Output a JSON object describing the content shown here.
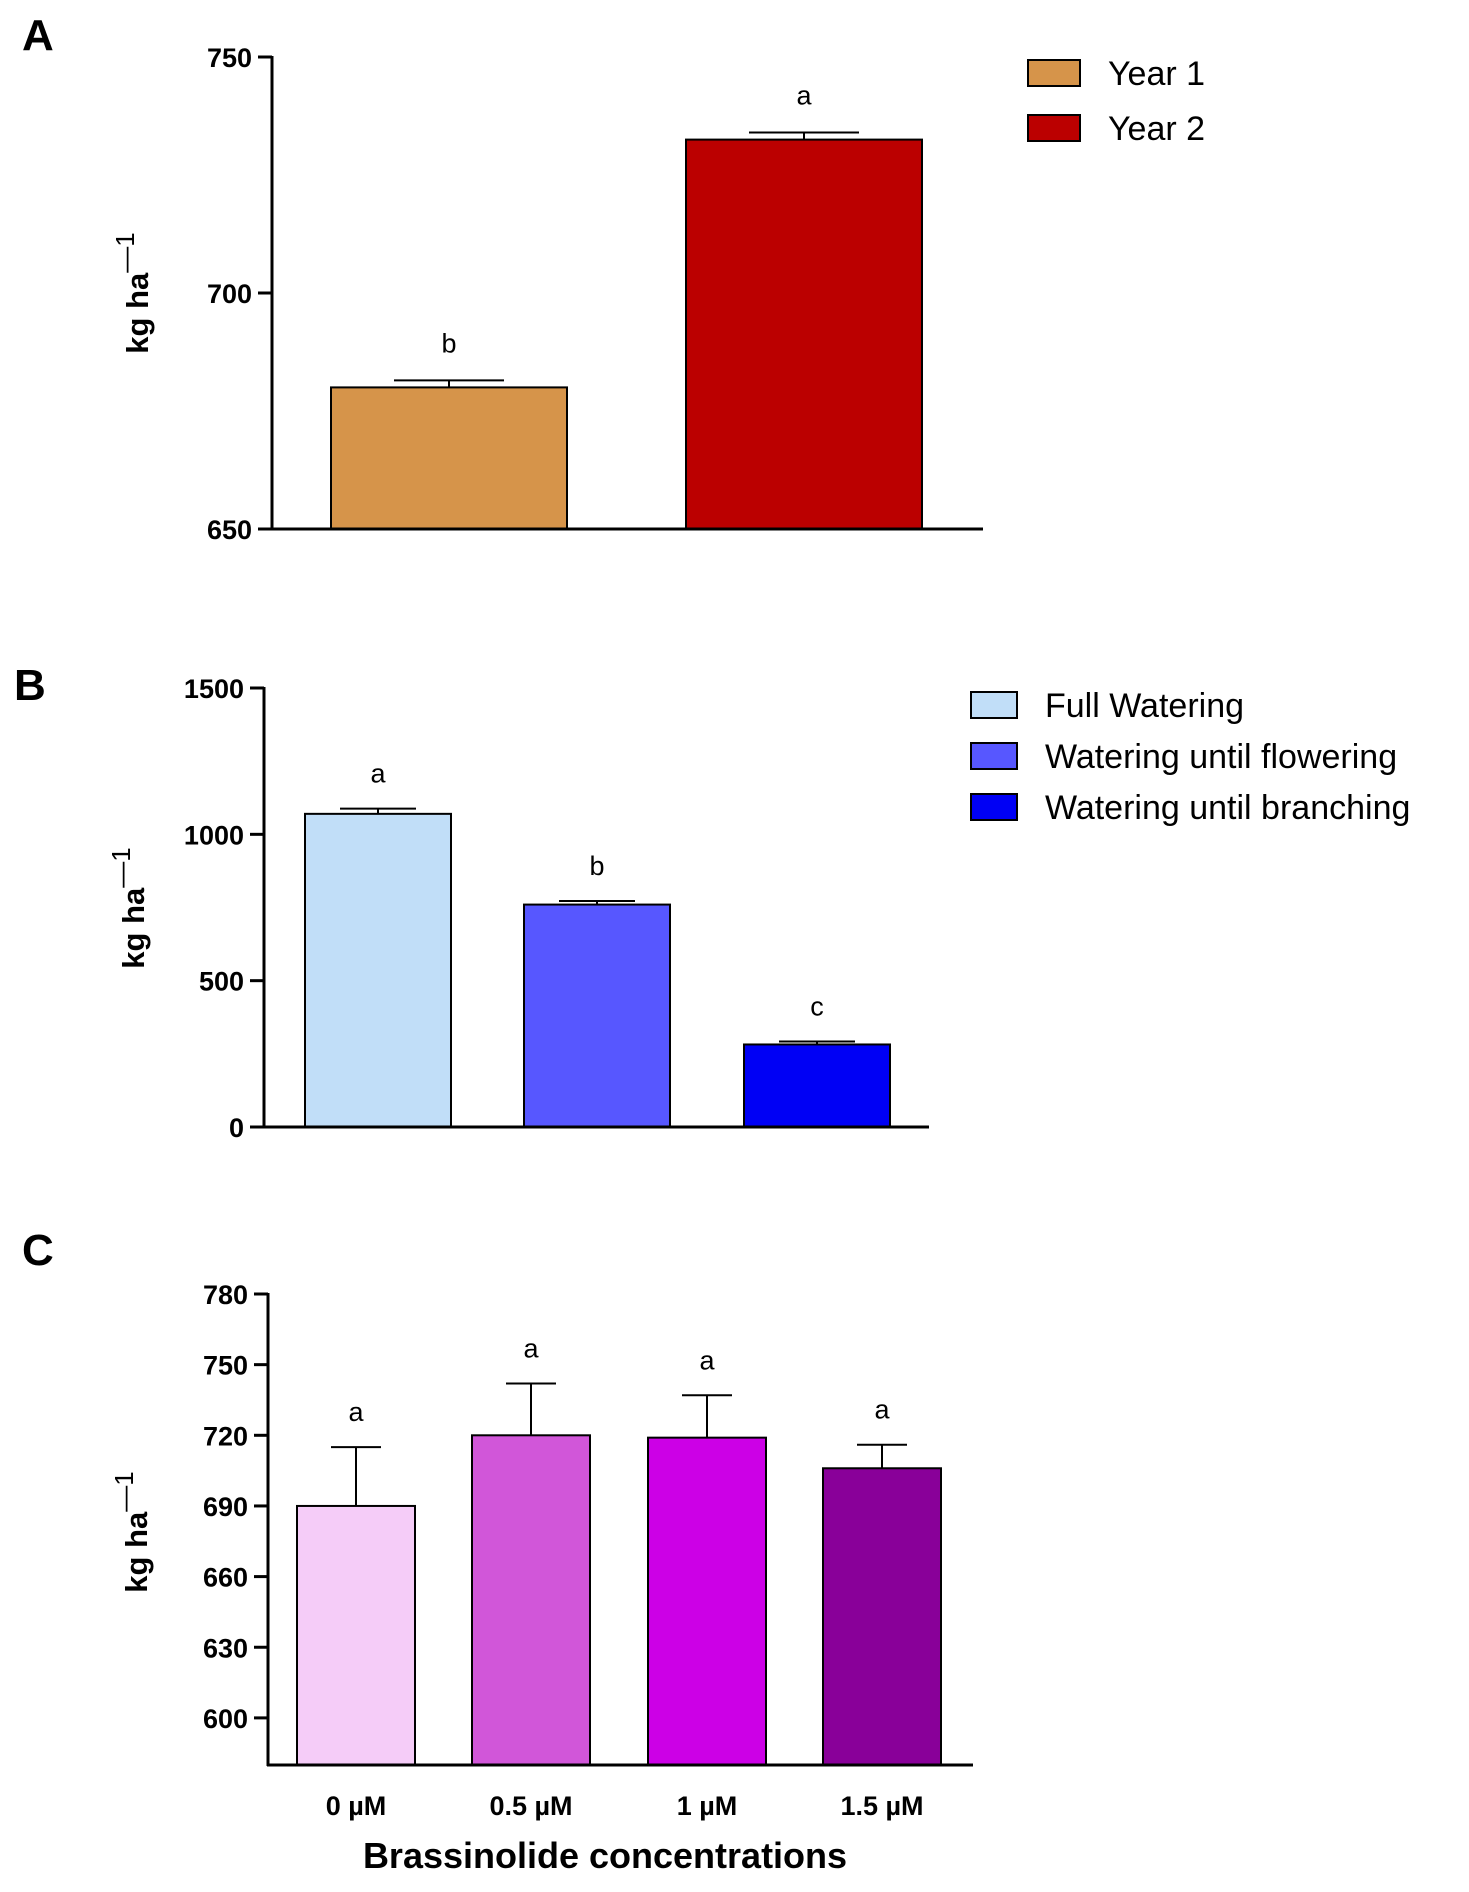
{
  "figure": {
    "panels": [
      {
        "letter": "A"
      },
      {
        "letter": "B"
      },
      {
        "letter": "C"
      }
    ]
  },
  "chart_data": [
    {
      "panel": "A",
      "type": "bar",
      "title": "",
      "xlabel": "",
      "ylabel": "kg ha",
      "ylabel_superscript": "—1",
      "ylim": [
        650,
        750
      ],
      "yticks": [
        650,
        700,
        750
      ],
      "legend_position": "top-right",
      "series": [
        {
          "name": "Year 1",
          "value": 680,
          "error": 1.5,
          "sig": "b",
          "color": "#D6944A"
        },
        {
          "name": "Year 2",
          "value": 732.5,
          "error": 1.5,
          "sig": "a",
          "color": "#BB0000"
        }
      ]
    },
    {
      "panel": "B",
      "type": "bar",
      "title": "",
      "xlabel": "",
      "ylabel": "kg ha",
      "ylabel_superscript": "—1",
      "ylim": [
        0,
        1500
      ],
      "yticks": [
        0,
        500,
        1000,
        1500
      ],
      "legend_position": "top-right",
      "series": [
        {
          "name": "Full Watering",
          "value": 1070,
          "error": 18,
          "sig": "a",
          "color": "#C1DEF8"
        },
        {
          "name": "Watering until flowering",
          "value": 760,
          "error": 12,
          "sig": "b",
          "color": "#5757FF"
        },
        {
          "name": "Watering until branching",
          "value": 282,
          "error": 10,
          "sig": "c",
          "color": "#0000F5"
        }
      ]
    },
    {
      "panel": "C",
      "type": "bar",
      "title": "",
      "xlabel": "Brassinolide concentrations",
      "ylabel": "kg ha",
      "ylabel_superscript": "—1",
      "ylim": [
        580,
        780
      ],
      "yticks": [
        600,
        630,
        660,
        690,
        720,
        750,
        780
      ],
      "categories": [
        "0 µM",
        "0.5 µM",
        "1 µM",
        "1.5 µM"
      ],
      "series": [
        {
          "name": "0 µM",
          "value": 690,
          "error": 25,
          "sig": "a",
          "color": "#F5CCF8"
        },
        {
          "name": "0.5 µM",
          "value": 720,
          "error": 22,
          "sig": "a",
          "color": "#D156D9"
        },
        {
          "name": "1 µM",
          "value": 719,
          "error": 18,
          "sig": "a",
          "color": "#CC00E6"
        },
        {
          "name": "1.5 µM",
          "value": 706,
          "error": 10,
          "sig": "a",
          "color": "#890099"
        }
      ]
    }
  ]
}
